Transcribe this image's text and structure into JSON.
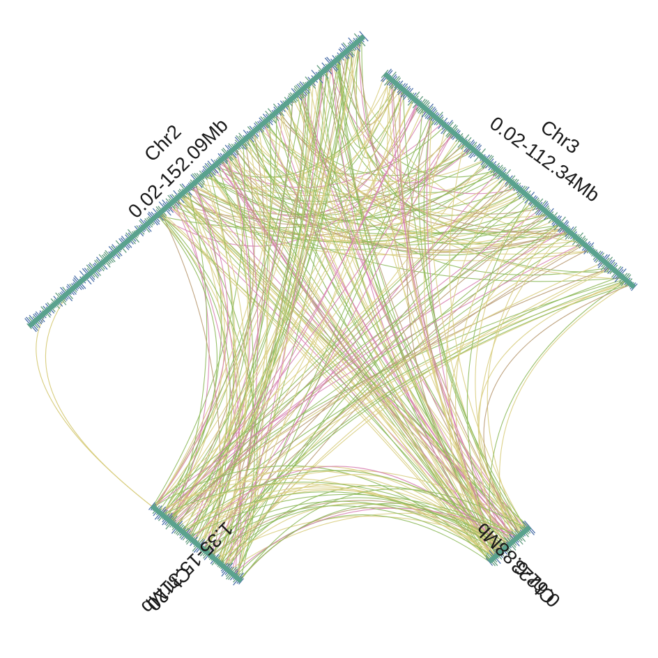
{
  "chromosomes": [
    {
      "id": "chr2",
      "name": "Chr2",
      "range": "0.02-152.09Mb"
    },
    {
      "id": "chr3",
      "name": "Chr3",
      "range": "0.02-112.34Mb"
    },
    {
      "id": "chr23",
      "name": "Chr23",
      "range": "0.62-6.88Mb"
    },
    {
      "id": "chr20",
      "name": "Chr20",
      "range": "1.35-15.31Mb"
    }
  ],
  "colors": {
    "chromosome_bar": "#5aa28e",
    "tick_blue": "#4a6fa8",
    "tick_green": "#5e9a7c",
    "link_yellow": "#d8cd7e",
    "link_green": "#8db95a",
    "link_pink": "#d77fb1",
    "link_brown": "#b89a72"
  }
}
